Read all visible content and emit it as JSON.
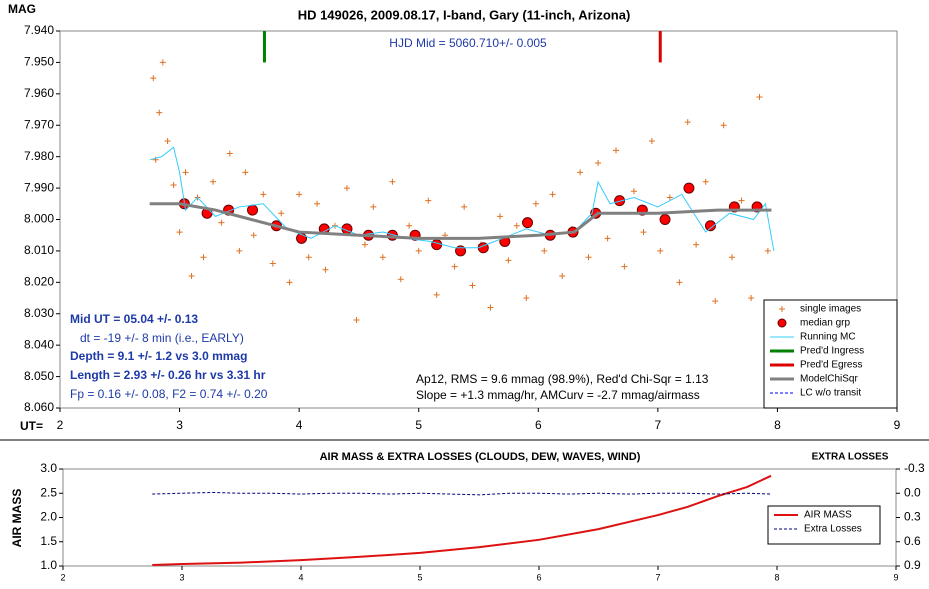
{
  "chart_data": [
    {
      "type": "line",
      "title": "HD 149026, 2009.08.17, I-band, Gary (11-inch, Arizona)",
      "annotations": [
        "HJD Mid = 5060.710+/- 0.005",
        "Mid UT = 05.04 +/- 0.13",
        "dt = -19 +/- 8 min (i.e., EARLY)",
        "Depth = 9.1 +/- 1.2 vs 3.0 mmag",
        "Length = 2.93 +/- 0.26 hr vs 3.31 hr",
        "Fp = 0.16 +/- 0.08,  F2 = 0.74 +/- 0.20",
        "Ap12, RMS = 9.6 mmag (98.9%), Red'd Chi-Sqr = 1.13",
        "Slope = +1.3 mmag/hr, AMCurv = -2.7 mmag/airmass"
      ],
      "xlabel": "UT=",
      "ylabel": "MAG",
      "xlim": [
        2,
        9
      ],
      "xticks": [
        2,
        3,
        4,
        5,
        6,
        7,
        8,
        9
      ],
      "ylim": [
        7.94,
        8.06
      ],
      "y_inverted": true,
      "yticks": [
        {
          "value": 7.94,
          "label": "7.940"
        },
        {
          "value": 7.95,
          "label": "7.950"
        },
        {
          "value": 7.96,
          "label": "7.960"
        },
        {
          "value": 7.97,
          "label": "7.970"
        },
        {
          "value": 7.98,
          "label": "7.980"
        },
        {
          "value": 7.99,
          "label": "7.990"
        },
        {
          "value": 8.0,
          "label": "8.000"
        },
        {
          "value": 8.01,
          "label": "8.010"
        },
        {
          "value": 8.02,
          "label": "8.020"
        },
        {
          "value": 8.03,
          "label": "8.030"
        },
        {
          "value": 8.04,
          "label": "8.040"
        },
        {
          "value": 8.05,
          "label": "8.050"
        },
        {
          "value": 8.06,
          "label": "8.060"
        }
      ],
      "legend": "lower right",
      "series": [
        {
          "name": "single images",
          "color": "#e07020",
          "style": "plus",
          "x": [
            2.78,
            2.8,
            2.83,
            2.86,
            2.9,
            2.95,
            3.0,
            3.05,
            3.1,
            3.15,
            3.2,
            3.28,
            3.35,
            3.42,
            3.5,
            3.55,
            3.62,
            3.7,
            3.78,
            3.85,
            3.92,
            4.0,
            4.08,
            4.15,
            4.22,
            4.3,
            4.4,
            4.48,
            4.55,
            4.62,
            4.7,
            4.78,
            4.85,
            4.92,
            5.0,
            5.08,
            5.15,
            5.22,
            5.3,
            5.38,
            5.45,
            5.52,
            5.6,
            5.68,
            5.75,
            5.82,
            5.9,
            5.98,
            6.05,
            6.12,
            6.2,
            6.28,
            6.35,
            6.42,
            6.5,
            6.58,
            6.65,
            6.72,
            6.8,
            6.88,
            6.95,
            7.02,
            7.1,
            7.18,
            7.25,
            7.32,
            7.4,
            7.48,
            7.55,
            7.62,
            7.7,
            7.78,
            7.85,
            7.92
          ],
          "values": [
            7.955,
            7.981,
            7.966,
            7.95,
            7.975,
            7.989,
            8.004,
            7.985,
            8.018,
            7.993,
            8.012,
            7.988,
            8.001,
            7.979,
            8.01,
            7.985,
            8.005,
            7.992,
            8.014,
            7.998,
            8.02,
            7.992,
            8.012,
            7.995,
            8.016,
            8.002,
            7.99,
            8.032,
            8.008,
            7.996,
            8.012,
            7.988,
            8.019,
            8.002,
            8.01,
            7.994,
            8.024,
            8.005,
            8.015,
            7.996,
            8.021,
            8.008,
            8.028,
            7.999,
            8.013,
            8.002,
            8.025,
            7.995,
            8.01,
            7.992,
            8.018,
            8.003,
            7.985,
            8.012,
            7.982,
            8.006,
            7.978,
            8.015,
            7.991,
            8.004,
            7.975,
            8.01,
            7.993,
            8.02,
            7.969,
            8.008,
            7.988,
            8.026,
            7.97,
            8.012,
            7.994,
            8.025,
            7.961,
            8.01
          ]
        },
        {
          "name": "median grp",
          "color": "#ff0000",
          "style": "circle",
          "x": [
            3.04,
            3.23,
            3.41,
            3.61,
            3.81,
            4.02,
            4.21,
            4.4,
            4.58,
            4.78,
            4.97,
            5.15,
            5.35,
            5.54,
            5.72,
            5.91,
            6.1,
            6.29,
            6.48,
            6.68,
            6.87,
            7.06,
            7.26,
            7.44,
            7.64,
            7.83
          ],
          "values": [
            7.995,
            7.998,
            7.997,
            7.997,
            8.002,
            8.006,
            8.003,
            8.003,
            8.005,
            8.005,
            8.005,
            8.008,
            8.01,
            8.009,
            8.007,
            8.001,
            8.005,
            8.004,
            7.998,
            7.994,
            7.997,
            8.0,
            7.99,
            8.002,
            7.996,
            7.996
          ]
        },
        {
          "name": "Running MC",
          "color": "#33ccff",
          "style": "line",
          "width": 1,
          "x": [
            2.75,
            2.85,
            2.95,
            3.0,
            3.05,
            3.15,
            3.3,
            3.5,
            3.7,
            3.9,
            4.1,
            4.3,
            4.5,
            4.7,
            4.9,
            5.1,
            5.3,
            5.5,
            5.7,
            5.9,
            6.1,
            6.3,
            6.45,
            6.5,
            6.6,
            6.8,
            7.0,
            7.2,
            7.4,
            7.6,
            7.8,
            7.9,
            7.97
          ],
          "values": [
            7.981,
            7.98,
            7.977,
            7.985,
            7.997,
            7.993,
            7.999,
            7.996,
            7.995,
            8.003,
            8.006,
            8.002,
            8.005,
            8.004,
            8.006,
            8.007,
            8.009,
            8.009,
            8.006,
            8.003,
            8.005,
            8.004,
            7.998,
            7.988,
            7.995,
            7.993,
            7.996,
            7.992,
            8.004,
            7.998,
            8.0,
            7.995,
            8.01
          ]
        },
        {
          "name": "Pred'd Ingress",
          "color": "#008000",
          "style": "line",
          "width": 3,
          "x": [
            3.71,
            3.71
          ],
          "values": [
            7.94,
            7.95
          ]
        },
        {
          "name": "Pred'd Egress",
          "color": "#dd0000",
          "style": "line",
          "width": 3,
          "x": [
            7.02,
            7.02
          ],
          "values": [
            7.94,
            7.95
          ]
        },
        {
          "name": "ModelChiSqr",
          "color": "#808080",
          "style": "line",
          "width": 3,
          "x": [
            2.75,
            3.0,
            3.3,
            3.6,
            4.0,
            4.5,
            5.0,
            5.5,
            6.0,
            6.3,
            6.5,
            7.0,
            7.5,
            7.95
          ],
          "values": [
            7.995,
            7.995,
            7.997,
            8.0,
            8.004,
            8.005,
            8.006,
            8.006,
            8.005,
            8.004,
            7.998,
            7.998,
            7.997,
            7.997
          ]
        },
        {
          "name": "LC w/o transit",
          "color": "#0000ff",
          "style": "line",
          "width": 1,
          "dashed": true,
          "x": [],
          "values": []
        }
      ]
    },
    {
      "type": "line",
      "title": "AIR MASS & EXTRA LOSSES (CLOUDS, DEW, WAVES, WIND)",
      "ylabel": "AIR MASS",
      "y2label": "EXTRA LOSSES",
      "xlim": [
        2,
        9
      ],
      "xticks": [
        2,
        3,
        4,
        5,
        6,
        7,
        8,
        9
      ],
      "ylim": [
        1,
        3
      ],
      "yticks": [
        {
          "value": 1,
          "label": "1.0"
        },
        1.5,
        {
          "value": 2,
          "label": "2.0"
        },
        2.5,
        {
          "value": 3,
          "label": "3.0"
        }
      ],
      "y2lim": [
        -0.3,
        0.9
      ],
      "y2_inverted": true,
      "y2ticks": [
        -0.3,
        {
          "value": 0,
          "label": "0.0"
        },
        0.3,
        0.6,
        0.9
      ],
      "legend": "right",
      "series": [
        {
          "name": "AIR MASS",
          "color": "#dd1111",
          "style": "line",
          "width": 2,
          "x": [
            2.75,
            3.0,
            3.5,
            4.0,
            4.5,
            5.0,
            5.5,
            6.0,
            6.5,
            7.0,
            7.25,
            7.5,
            7.75,
            7.95
          ],
          "values": [
            1.02,
            1.04,
            1.07,
            1.12,
            1.19,
            1.27,
            1.39,
            1.54,
            1.76,
            2.05,
            2.22,
            2.44,
            2.63,
            2.86
          ]
        },
        {
          "name": "Extra Losses",
          "color": "#000080",
          "style": "line",
          "width": 1,
          "dashed": true,
          "axis": "y2",
          "x": [
            2.75,
            3.0,
            3.25,
            3.5,
            3.75,
            4.0,
            4.25,
            4.5,
            4.75,
            5.0,
            5.25,
            5.5,
            5.75,
            6.0,
            6.25,
            6.5,
            6.75,
            7.0,
            7.25,
            7.5,
            7.75,
            7.95
          ],
          "values": [
            0.01,
            0.0,
            -0.01,
            0.0,
            0.0,
            0.01,
            0.0,
            0.0,
            0.01,
            0.0,
            0.01,
            0.02,
            0.0,
            0.0,
            0.01,
            0.0,
            0.01,
            0.0,
            0.0,
            0.01,
            0.0,
            0.01
          ]
        }
      ]
    }
  ]
}
